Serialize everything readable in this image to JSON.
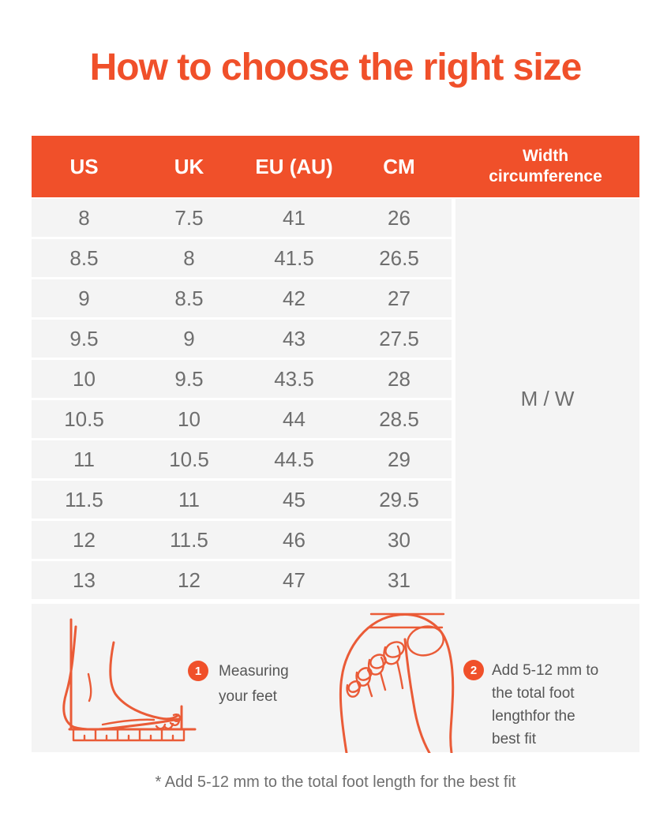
{
  "page": {
    "title": "How to choose the right size",
    "footnote": "* Add 5-12 mm to the total foot length for the best fit"
  },
  "table": {
    "headers": {
      "us": "US",
      "uk": "UK",
      "eu": "EU (AU)",
      "cm": "CM"
    },
    "width_header_lines": [
      "Width",
      "circumference"
    ],
    "rows": [
      [
        "8",
        "7.5",
        "41",
        "26"
      ],
      [
        "8.5",
        "8",
        "41.5",
        "26.5"
      ],
      [
        "9",
        "8.5",
        "42",
        "27"
      ],
      [
        "9.5",
        "9",
        "43",
        "27.5"
      ],
      [
        "10",
        "9.5",
        "43.5",
        "28"
      ],
      [
        "10.5",
        "10",
        "44",
        "28.5"
      ],
      [
        "11",
        "10.5",
        "44.5",
        "29"
      ],
      [
        "11.5",
        "11",
        "45",
        "29.5"
      ],
      [
        "12",
        "11.5",
        "46",
        "30"
      ],
      [
        "13",
        "12",
        "47",
        "31"
      ]
    ],
    "width_value": "M / W"
  },
  "steps": [
    {
      "number": "1",
      "icon": "foot-side-view-icon",
      "lines": [
        "Measuring",
        "your feet"
      ]
    },
    {
      "number": "2",
      "icon": "foot-top-view-icon",
      "lines": [
        "Add 5-12 mm to",
        "the total foot",
        "lengthfor the",
        "best fit"
      ]
    }
  ],
  "colors": {
    "accent": "#F0502A",
    "illustration_stroke": "#EA5B37",
    "block_bg": "#F4F4F4",
    "table_text": "#6E6E6E",
    "step_text": "#565656",
    "footnote_text": "#6F6F6F"
  }
}
